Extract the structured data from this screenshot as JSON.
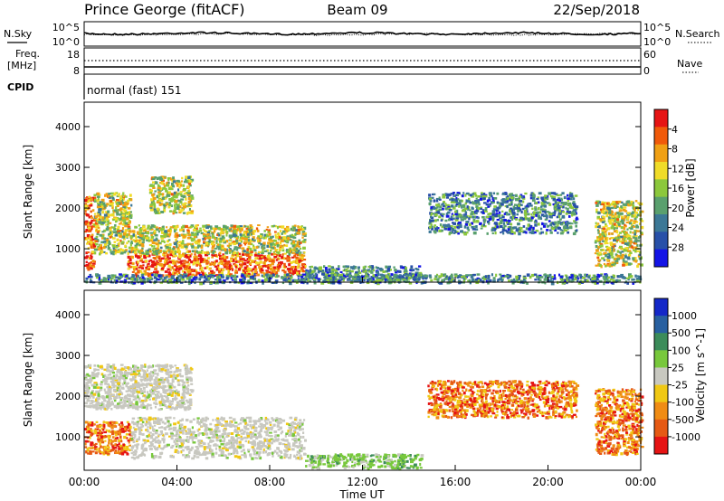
{
  "header": {
    "station": "Prince George (fitACF)",
    "beam": "Beam 09",
    "date": "22/Sep/2018"
  },
  "noise_panel": {
    "left_label": "N.Sky",
    "right_label": "N.Search",
    "left_ticks": [
      "10^5",
      "10^0"
    ],
    "right_ticks": [
      "10^5",
      "10^0"
    ]
  },
  "freq_panel": {
    "left_label_1": "Freq.",
    "left_label_2": "[MHz]",
    "right_label": "Nave",
    "left_ticks": [
      "18",
      "8"
    ],
    "right_ticks": [
      "60",
      "0"
    ]
  },
  "cpid_panel": {
    "label": "CPID",
    "text": "normal (fast) 151"
  },
  "x_axis": {
    "label": "Time UT",
    "ticks": [
      "00:00",
      "04:00",
      "08:00",
      "12:00",
      "16:00",
      "20:00",
      "00:00"
    ]
  },
  "chart_data": [
    {
      "type": "heatmap",
      "name": "Power",
      "ylabel": "Slant Range [km]",
      "xlabel": "Time UT",
      "x_range_hours": [
        0,
        24
      ],
      "ylim": [
        180,
        4600
      ],
      "y_ticks": [
        "1000",
        "2000",
        "3000",
        "4000"
      ],
      "colorbar": {
        "label": "Power [dB]",
        "range": [
          0,
          32
        ],
        "ticks": [
          "4",
          "8",
          "12",
          "16",
          "20",
          "24",
          "28"
        ],
        "colors": [
          "#1414e6",
          "#2850a8",
          "#3c7896",
          "#5aa06e",
          "#8cc83c",
          "#f0dc28",
          "#f0a014",
          "#f05a0a",
          "#e61414"
        ]
      },
      "regions": [
        {
          "t": [
            0.0,
            0.4
          ],
          "r": [
            500,
            2300
          ],
          "level": "high"
        },
        {
          "t": [
            0.4,
            2.0
          ],
          "r": [
            900,
            2400
          ],
          "level": "medium"
        },
        {
          "t": [
            1.8,
            9.5
          ],
          "r": [
            350,
            900
          ],
          "level": "high"
        },
        {
          "t": [
            2.0,
            9.5
          ],
          "r": [
            900,
            1600
          ],
          "level": "medium"
        },
        {
          "t": [
            2.8,
            4.6
          ],
          "r": [
            1900,
            2800
          ],
          "level": "medium"
        },
        {
          "t": [
            9.5,
            14.5
          ],
          "r": [
            250,
            600
          ],
          "level": "low"
        },
        {
          "t": [
            14.8,
            21.2
          ],
          "r": [
            1400,
            2400
          ],
          "level": "low"
        },
        {
          "t": [
            22.0,
            24.0
          ],
          "r": [
            600,
            2200
          ],
          "level": "medium"
        },
        {
          "t": [
            0.0,
            24.0
          ],
          "r": [
            180,
            400
          ],
          "level": "low"
        }
      ]
    },
    {
      "type": "heatmap",
      "name": "Velocity",
      "ylabel": "Slant Range [km]",
      "xlabel": "Time UT",
      "x_range_hours": [
        0,
        24
      ],
      "ylim": [
        180,
        4600
      ],
      "y_ticks": [
        "1000",
        "2000",
        "3000",
        "4000"
      ],
      "colorbar": {
        "label": "Velocity [m s^-1]",
        "ticks": [
          "1000",
          "500",
          "100",
          "25",
          "-25",
          "-100",
          "-500",
          "-1000"
        ],
        "colors": [
          "#1428c8",
          "#2860a0",
          "#3c8c5a",
          "#78c83c",
          "#c8c8c0",
          "#f0c814",
          "#f08c14",
          "#e65a14",
          "#e61414"
        ]
      },
      "regions": [
        {
          "t": [
            0.0,
            2.0
          ],
          "r": [
            600,
            1400
          ],
          "velocity": "negative"
        },
        {
          "t": [
            0.0,
            4.6
          ],
          "r": [
            1700,
            2800
          ],
          "velocity": "near-zero"
        },
        {
          "t": [
            2.0,
            9.5
          ],
          "r": [
            500,
            1500
          ],
          "velocity": "near-zero"
        },
        {
          "t": [
            9.5,
            14.5
          ],
          "r": [
            250,
            600
          ],
          "velocity": "positive"
        },
        {
          "t": [
            14.8,
            21.2
          ],
          "r": [
            1500,
            2400
          ],
          "velocity": "negative"
        },
        {
          "t": [
            22.0,
            24.0
          ],
          "r": [
            600,
            2200
          ],
          "velocity": "negative"
        }
      ]
    }
  ]
}
